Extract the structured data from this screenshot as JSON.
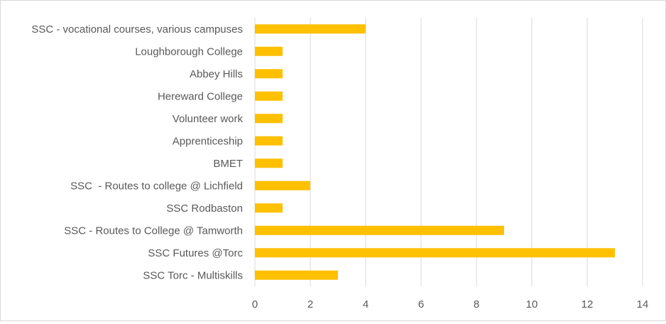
{
  "chart_data": {
    "type": "bar",
    "orientation": "horizontal",
    "categories": [
      "SSC - vocational courses, various campuses",
      "Loughborough College",
      "Abbey Hills",
      "Hereward College",
      "Volunteer work",
      "Apprenticeship",
      "BMET",
      "SSC  - Routes to college @ Lichfield",
      "SSC Rodbaston",
      "SSC - Routes to College @ Tamworth",
      "SSC Futures @Torc",
      "SSC Torc - Multiskills"
    ],
    "values": [
      4,
      1,
      1,
      1,
      1,
      1,
      1,
      2,
      1,
      9,
      13,
      3
    ],
    "xlim": [
      0,
      14
    ],
    "xticks": [
      0,
      2,
      4,
      6,
      8,
      10,
      12,
      14
    ],
    "title": "",
    "xlabel": "",
    "ylabel": "",
    "grid": "vertical",
    "legend": "none",
    "bar_color": "#FFC000"
  }
}
